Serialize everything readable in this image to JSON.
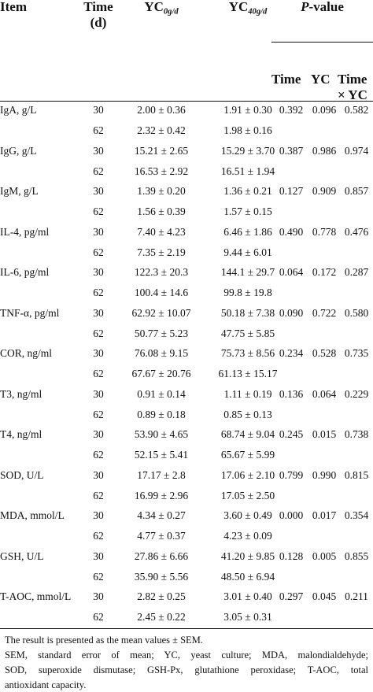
{
  "header": {
    "item": "Item",
    "time_line1": "Time",
    "time_line2": "(d)",
    "yc0_base": "YC",
    "yc0_sub": "0g/d",
    "yc40_base": "YC",
    "yc40_sub": "40g/d",
    "pvalue_p": "P",
    "pvalue_rest": "-value",
    "sub_time": "Time",
    "sub_yc": "YC",
    "sub_txyc_line1": "Time",
    "sub_txyc_line2": "× YC"
  },
  "rows": [
    {
      "item": "IgA, g/L",
      "d1": "30",
      "a1": "2.00 ± 0.36",
      "b1": "1.91 ± 0.30",
      "pt": "0.392",
      "py": "0.096",
      "pi": "0.582",
      "d2": "62",
      "a2": "2.32 ± 0.42",
      "b2": "1.98 ± 0.16"
    },
    {
      "item": "IgG, g/L",
      "d1": "30",
      "a1": "15.21 ± 2.65",
      "b1": "15.29 ± 3.70",
      "pt": "0.387",
      "py": "0.986",
      "pi": "0.974",
      "d2": "62",
      "a2": "16.53 ± 2.92",
      "b2": "16.51 ± 1.94"
    },
    {
      "item": "IgM, g/L",
      "d1": "30",
      "a1": "1.39 ± 0.20",
      "b1": "1.36 ± 0.21",
      "pt": "0.127",
      "py": "0.909",
      "pi": "0.857",
      "d2": "62",
      "a2": "1.56 ± 0.39",
      "b2": "1.57 ± 0.15"
    },
    {
      "item": "IL-4, pg/ml",
      "d1": "30",
      "a1": "7.40 ± 4.23",
      "b1": "6.46 ± 1.86",
      "pt": "0.490",
      "py": "0.778",
      "pi": "0.476",
      "d2": "62",
      "a2": "7.35 ± 2.19",
      "b2": "9.44 ± 6.01"
    },
    {
      "item": "IL-6, pg/ml",
      "d1": "30",
      "a1": "122.3 ± 20.3",
      "b1": "144.1 ± 29.7",
      "pt": "0.064",
      "py": "0.172",
      "pi": "0.287",
      "d2": "62",
      "a2": "100.4 ± 14.6",
      "b2": "99.8 ± 19.8"
    },
    {
      "item": "TNF-α, pg/ml",
      "d1": "30",
      "a1": "62.92 ± 10.07",
      "b1": "50.18 ± 7.38",
      "pt": "0.090",
      "py": "0.722",
      "pi": "0.580",
      "d2": "62",
      "a2": "50.77 ± 5.23",
      "b2": "47.75 ± 5.85"
    },
    {
      "item": "COR, ng/ml",
      "d1": "30",
      "a1": "76.08 ± 9.15",
      "b1": "75.73 ± 8.56",
      "pt": "0.234",
      "py": "0.528",
      "pi": "0.735",
      "d2": "62",
      "a2": "67.67 ± 20.76",
      "b2": "61.13 ± 15.17"
    },
    {
      "item": "T3, ng/ml",
      "d1": "30",
      "a1": "0.91 ± 0.14",
      "b1": "1.11 ± 0.19",
      "pt": "0.136",
      "py": "0.064",
      "pi": "0.229",
      "d2": "62",
      "a2": "0.89 ± 0.18",
      "b2": "0.85 ± 0.13"
    },
    {
      "item": "T4, ng/ml",
      "d1": "30",
      "a1": "53.90 ± 4.65",
      "b1": "68.74 ± 9.04",
      "pt": "0.245",
      "py": "0.015",
      "pi": "0.738",
      "d2": "62",
      "a2": "52.15 ± 5.41",
      "b2": "65.67 ± 5.99"
    },
    {
      "item": "SOD, U/L",
      "d1": "30",
      "a1": "17.17 ± 2.8",
      "b1": "17.06 ± 2.10",
      "pt": "0.799",
      "py": "0.990",
      "pi": "0.815",
      "d2": "62",
      "a2": "16.99 ± 2.96",
      "b2": "17.05 ± 2.50"
    },
    {
      "item": "MDA, mmol/L",
      "d1": "30",
      "a1": "4.34 ± 0.27",
      "b1": "3.60 ± 0.49",
      "pt": "0.000",
      "py": "0.017",
      "pi": "0.354",
      "d2": "62",
      "a2": "4.77 ± 0.37",
      "b2": "4.23 ± 0.09"
    },
    {
      "item": "GSH, U/L",
      "d1": "30",
      "a1": "27.86 ± 6.66",
      "b1": "41.20 ± 9.85",
      "pt": "0.128",
      "py": "0.005",
      "pi": "0.855",
      "d2": "62",
      "a2": "35.90 ± 5.56",
      "b2": "48.50 ± 6.94"
    },
    {
      "item": "T-AOC, mmol/L",
      "d1": "30",
      "a1": "2.82 ± 0.25",
      "b1": "3.01 ± 0.40",
      "pt": "0.297",
      "py": "0.045",
      "pi": "0.211",
      "d2": "62",
      "a2": "2.45 ± 0.22",
      "b2": "3.05 ± 0.31"
    }
  ],
  "footnotes": {
    "line1": "The result is presented as the mean values ± SEM.",
    "line2": "SEM, standard error of mean; YC, yeast culture; MDA, malondialdehyde;",
    "line3": "SOD, superoxide dismutase; GSH-Px, glutathione peroxidase; T-AOC, total",
    "line4": "antioxidant capacity."
  }
}
